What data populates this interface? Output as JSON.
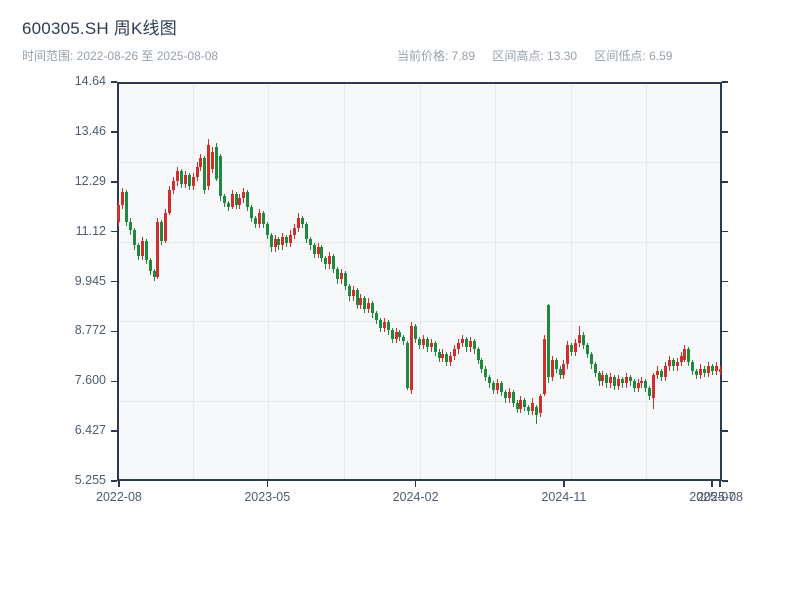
{
  "header": {
    "title": "600305.SH 周K线图",
    "subtitle": "时间范围: 2022-08-26 至 2025-08-08",
    "stats": [
      {
        "label": "当前价格",
        "value": "7.89",
        "text": "当前价格: 7.89"
      },
      {
        "label": "区间高点",
        "value": "13.30",
        "text": "区间高点: 13.30"
      },
      {
        "label": "区间低点",
        "value": "6.59",
        "text": "区间低点: 6.59"
      }
    ]
  },
  "chart_data": {
    "type": "candlestick",
    "title": "600305.SH 周K线图",
    "symbol": "600305.SH",
    "period": "weekly",
    "date_range": [
      "2022-08-26",
      "2025-08-08"
    ],
    "current_price": 7.89,
    "range_high": 13.3,
    "range_low": 6.59,
    "legend": "none",
    "grid": true,
    "y_axis": {
      "min": 5.255,
      "max": 14.64,
      "tick_labels": [
        "14.64",
        "13.46",
        "12.29",
        "11.12",
        "9.945",
        "8.772",
        "7.600",
        "6.427",
        "5.255"
      ],
      "tick_values": [
        14.64,
        13.46,
        12.29,
        11.12,
        9.945,
        8.772,
        7.6,
        6.427,
        5.255
      ]
    },
    "x_axis": {
      "ticks": [
        {
          "label": "2022-08",
          "index": 0
        },
        {
          "label": "2023-05",
          "index": 38
        },
        {
          "label": "2024-02",
          "index": 76
        },
        {
          "label": "2024-11",
          "index": 114
        },
        {
          "label": "2025-07",
          "index": 152
        },
        {
          "label": "2025-08",
          "index": 154
        }
      ]
    },
    "colors": {
      "up": "#cf2e2a",
      "down": "#1f8a3d",
      "axis": "#2c3a4d",
      "grid": "#e6e9ee",
      "plot_bg": "#f7f8fa",
      "tick_label": "#4d5d6e",
      "title": "#2e3d52",
      "muted": "#95a0ac"
    },
    "candles_format": [
      "open",
      "high",
      "low",
      "close"
    ],
    "candles": [
      [
        11.35,
        11.85,
        11.25,
        11.75
      ],
      [
        11.75,
        12.15,
        11.65,
        12.05
      ],
      [
        12.05,
        12.1,
        11.25,
        11.35
      ],
      [
        11.35,
        11.45,
        11.05,
        11.15
      ],
      [
        11.15,
        11.2,
        10.7,
        10.8
      ],
      [
        10.8,
        10.85,
        10.45,
        10.55
      ],
      [
        10.55,
        11.0,
        10.45,
        10.9
      ],
      [
        10.9,
        10.95,
        10.35,
        10.45
      ],
      [
        10.45,
        10.5,
        10.1,
        10.2
      ],
      [
        10.2,
        10.25,
        9.95,
        10.05
      ],
      [
        10.05,
        11.45,
        10.0,
        11.35
      ],
      [
        11.35,
        11.4,
        10.8,
        10.9
      ],
      [
        10.9,
        11.65,
        10.85,
        11.55
      ],
      [
        11.55,
        12.2,
        11.5,
        12.1
      ],
      [
        12.1,
        12.4,
        12.0,
        12.3
      ],
      [
        12.3,
        12.65,
        12.2,
        12.55
      ],
      [
        12.55,
        12.6,
        12.15,
        12.25
      ],
      [
        12.25,
        12.55,
        12.15,
        12.45
      ],
      [
        12.45,
        12.5,
        12.1,
        12.2
      ],
      [
        12.2,
        12.5,
        12.1,
        12.4
      ],
      [
        12.4,
        12.75,
        12.3,
        12.65
      ],
      [
        12.65,
        12.95,
        12.55,
        12.85
      ],
      [
        12.85,
        12.9,
        12.0,
        12.1
      ],
      [
        12.2,
        13.3,
        12.1,
        13.15
      ],
      [
        12.6,
        13.1,
        12.5,
        13.0
      ],
      [
        13.1,
        13.2,
        12.3,
        12.35
      ],
      [
        12.9,
        12.95,
        11.85,
        11.95
      ],
      [
        11.95,
        12.0,
        11.7,
        11.8
      ],
      [
        11.8,
        11.85,
        11.6,
        11.7
      ],
      [
        11.7,
        12.1,
        11.65,
        12.0
      ],
      [
        12.0,
        12.05,
        11.65,
        11.75
      ],
      [
        11.75,
        12.0,
        11.65,
        11.9
      ],
      [
        11.9,
        12.15,
        11.8,
        12.05
      ],
      [
        12.05,
        12.1,
        11.6,
        11.7
      ],
      [
        11.7,
        11.75,
        11.35,
        11.45
      ],
      [
        11.45,
        11.5,
        11.2,
        11.3
      ],
      [
        11.3,
        11.65,
        11.2,
        11.55
      ],
      [
        11.55,
        11.6,
        11.2,
        11.3
      ],
      [
        11.3,
        11.35,
        10.95,
        11.05
      ],
      [
        11.05,
        11.1,
        10.65,
        10.75
      ],
      [
        10.75,
        11.05,
        10.65,
        10.95
      ],
      [
        10.95,
        11.0,
        10.7,
        10.8
      ],
      [
        10.8,
        11.1,
        10.7,
        11.0
      ],
      [
        11.0,
        11.05,
        10.75,
        10.85
      ],
      [
        10.85,
        11.15,
        10.75,
        11.05
      ],
      [
        11.05,
        11.3,
        10.95,
        11.2
      ],
      [
        11.2,
        11.55,
        11.1,
        11.45
      ],
      [
        11.45,
        11.5,
        11.2,
        11.3
      ],
      [
        11.3,
        11.35,
        10.85,
        10.95
      ],
      [
        10.95,
        11.0,
        10.7,
        10.8
      ],
      [
        10.8,
        10.85,
        10.5,
        10.6
      ],
      [
        10.6,
        10.85,
        10.5,
        10.75
      ],
      [
        10.75,
        10.8,
        10.4,
        10.5
      ],
      [
        10.5,
        10.55,
        10.25,
        10.35
      ],
      [
        10.35,
        10.65,
        10.25,
        10.55
      ],
      [
        10.55,
        10.6,
        10.15,
        10.25
      ],
      [
        10.25,
        10.3,
        9.9,
        10.0
      ],
      [
        10.0,
        10.25,
        9.9,
        10.15
      ],
      [
        10.15,
        10.2,
        9.75,
        9.85
      ],
      [
        9.85,
        9.9,
        9.5,
        9.6
      ],
      [
        9.6,
        9.85,
        9.5,
        9.75
      ],
      [
        9.75,
        9.8,
        9.3,
        9.4
      ],
      [
        9.4,
        9.65,
        9.3,
        9.55
      ],
      [
        9.55,
        9.6,
        9.2,
        9.3
      ],
      [
        9.3,
        9.55,
        9.2,
        9.45
      ],
      [
        9.45,
        9.5,
        9.1,
        9.2
      ],
      [
        9.2,
        9.25,
        8.95,
        9.05
      ],
      [
        9.05,
        9.1,
        8.75,
        8.85
      ],
      [
        8.85,
        9.1,
        8.75,
        9.0
      ],
      [
        9.0,
        9.05,
        8.7,
        8.8
      ],
      [
        8.8,
        8.85,
        8.5,
        8.6
      ],
      [
        8.6,
        8.85,
        8.5,
        8.75
      ],
      [
        8.75,
        8.8,
        8.55,
        8.65
      ],
      [
        8.65,
        8.7,
        8.45,
        8.55
      ],
      [
        8.5,
        8.55,
        7.4,
        7.45
      ],
      [
        7.4,
        9.0,
        7.3,
        8.9
      ],
      [
        8.9,
        8.95,
        8.5,
        8.6
      ],
      [
        8.6,
        8.65,
        8.35,
        8.45
      ],
      [
        8.45,
        8.7,
        8.35,
        8.6
      ],
      [
        8.6,
        8.65,
        8.3,
        8.4
      ],
      [
        8.4,
        8.6,
        8.3,
        8.5
      ],
      [
        8.5,
        8.55,
        8.2,
        8.3
      ],
      [
        8.3,
        8.35,
        8.05,
        8.15
      ],
      [
        8.15,
        8.35,
        8.05,
        8.25
      ],
      [
        8.25,
        8.3,
        7.95,
        8.05
      ],
      [
        8.05,
        8.3,
        7.95,
        8.2
      ],
      [
        8.2,
        8.45,
        8.1,
        8.35
      ],
      [
        8.35,
        8.6,
        8.25,
        8.5
      ],
      [
        8.5,
        8.7,
        8.4,
        8.6
      ],
      [
        8.6,
        8.65,
        8.3,
        8.4
      ],
      [
        8.4,
        8.65,
        8.3,
        8.55
      ],
      [
        8.55,
        8.6,
        8.25,
        8.35
      ],
      [
        8.35,
        8.4,
        8.0,
        8.1
      ],
      [
        8.1,
        8.15,
        7.8,
        7.9
      ],
      [
        7.9,
        7.95,
        7.6,
        7.7
      ],
      [
        7.7,
        7.75,
        7.45,
        7.55
      ],
      [
        7.55,
        7.6,
        7.3,
        7.4
      ],
      [
        7.4,
        7.65,
        7.3,
        7.55
      ],
      [
        7.55,
        7.6,
        7.25,
        7.35
      ],
      [
        7.35,
        7.4,
        7.1,
        7.2
      ],
      [
        7.2,
        7.45,
        7.1,
        7.35
      ],
      [
        7.35,
        7.4,
        7.0,
        7.1
      ],
      [
        7.1,
        7.15,
        6.85,
        6.95
      ],
      [
        6.95,
        7.25,
        6.85,
        7.15
      ],
      [
        7.15,
        7.2,
        6.9,
        7.0
      ],
      [
        7.0,
        7.05,
        6.8,
        6.9
      ],
      [
        6.9,
        7.2,
        6.8,
        7.1
      ],
      [
        7.0,
        7.05,
        6.59,
        6.8
      ],
      [
        6.85,
        7.3,
        6.75,
        7.25
      ],
      [
        7.3,
        8.7,
        7.25,
        8.6
      ],
      [
        9.4,
        9.42,
        7.55,
        7.7
      ],
      [
        7.7,
        8.2,
        7.6,
        8.1
      ],
      [
        8.1,
        8.15,
        7.8,
        7.9
      ],
      [
        7.9,
        7.95,
        7.65,
        7.75
      ],
      [
        7.75,
        8.1,
        7.65,
        8.0
      ],
      [
        8.0,
        8.55,
        7.9,
        8.45
      ],
      [
        8.45,
        8.5,
        8.2,
        8.3
      ],
      [
        8.3,
        8.6,
        8.2,
        8.5
      ],
      [
        8.5,
        8.9,
        8.4,
        8.7
      ],
      [
        8.7,
        8.75,
        8.35,
        8.45
      ],
      [
        8.45,
        8.5,
        8.15,
        8.25
      ],
      [
        8.25,
        8.3,
        7.9,
        8.0
      ],
      [
        8.0,
        8.05,
        7.7,
        7.8
      ],
      [
        7.8,
        7.85,
        7.5,
        7.6
      ],
      [
        7.6,
        7.85,
        7.5,
        7.75
      ],
      [
        7.75,
        7.8,
        7.45,
        7.55
      ],
      [
        7.55,
        7.8,
        7.45,
        7.7
      ],
      [
        7.7,
        7.75,
        7.4,
        7.5
      ],
      [
        7.5,
        7.75,
        7.4,
        7.65
      ],
      [
        7.65,
        7.7,
        7.45,
        7.55
      ],
      [
        7.55,
        7.8,
        7.45,
        7.7
      ],
      [
        7.7,
        7.75,
        7.5,
        7.6
      ],
      [
        7.6,
        7.65,
        7.35,
        7.45
      ],
      [
        7.45,
        7.65,
        7.35,
        7.55
      ],
      [
        7.55,
        7.7,
        7.45,
        7.6
      ],
      [
        7.6,
        7.65,
        7.35,
        7.45
      ],
      [
        7.45,
        7.5,
        7.15,
        7.25
      ],
      [
        7.2,
        7.8,
        6.95,
        7.75
      ],
      [
        7.75,
        7.95,
        7.65,
        7.85
      ],
      [
        7.85,
        7.9,
        7.6,
        7.7
      ],
      [
        7.7,
        8.05,
        7.6,
        7.95
      ],
      [
        7.95,
        8.2,
        7.85,
        8.1
      ],
      [
        8.1,
        8.15,
        7.85,
        7.95
      ],
      [
        7.95,
        8.15,
        7.85,
        8.05
      ],
      [
        8.05,
        8.3,
        7.95,
        8.2
      ],
      [
        8.1,
        8.45,
        8.05,
        8.35
      ],
      [
        8.35,
        8.4,
        7.95,
        8.05
      ],
      [
        8.05,
        8.1,
        7.75,
        7.85
      ],
      [
        7.85,
        7.9,
        7.65,
        7.75
      ],
      [
        7.75,
        8.0,
        7.65,
        7.9
      ],
      [
        7.9,
        7.95,
        7.7,
        7.8
      ],
      [
        7.8,
        8.05,
        7.7,
        7.95
      ],
      [
        7.95,
        8.0,
        7.75,
        7.85
      ],
      [
        7.85,
        8.05,
        7.75,
        7.95
      ],
      [
        7.82,
        7.95,
        7.75,
        7.89
      ]
    ]
  }
}
